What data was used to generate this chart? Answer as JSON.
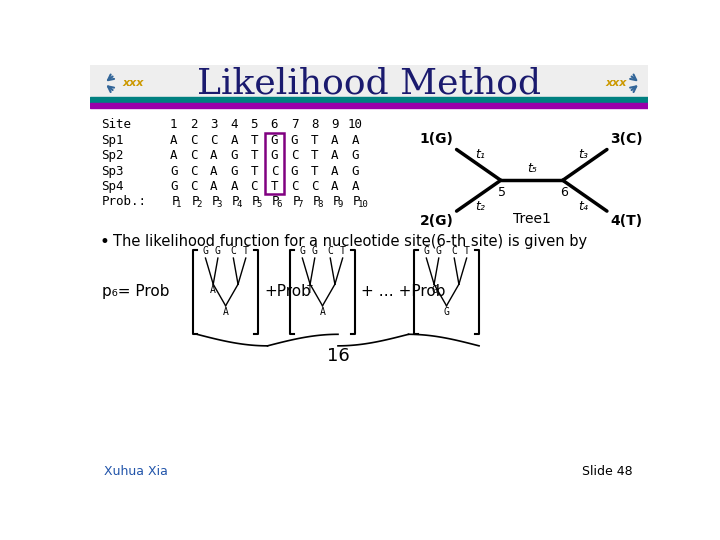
{
  "title": "Likelihood Method",
  "title_fontsize": 26,
  "title_color": "#1a1a6e",
  "title_font": "serif",
  "bg_color": "#ffffff",
  "header_bar1_color": "#008080",
  "header_bar2_color": "#9900aa",
  "row_labels": [
    "Site",
    "Sp1",
    "Sp2",
    "Sp3",
    "Sp4",
    "Prob.:"
  ],
  "col_headers": [
    "1",
    "2",
    "3",
    "4",
    "5",
    "6",
    "7",
    "8",
    "9",
    "10"
  ],
  "table_data": [
    [
      "A",
      "C",
      "C",
      "A",
      "T",
      "G",
      "G",
      "T",
      "A",
      "A"
    ],
    [
      "A",
      "C",
      "A",
      "G",
      "T",
      "G",
      "C",
      "T",
      "A",
      "G"
    ],
    [
      "G",
      "C",
      "A",
      "G",
      "T",
      "C",
      "G",
      "T",
      "A",
      "G"
    ],
    [
      "G",
      "C",
      "A",
      "A",
      "C",
      "T",
      "C",
      "C",
      "A",
      "A"
    ]
  ],
  "highlight_col": 5,
  "bullet_text": "The likelihood function for a nucleotide site(6-th site) is given by",
  "slide_author": "Xuhua Xia",
  "slide_number": "Slide 48",
  "tree_sp1": "1(G)",
  "tree_sp2": "2(G)",
  "tree_sp3": "3(C)",
  "tree_sp4": "4(T)",
  "tree_name": "Tree1"
}
